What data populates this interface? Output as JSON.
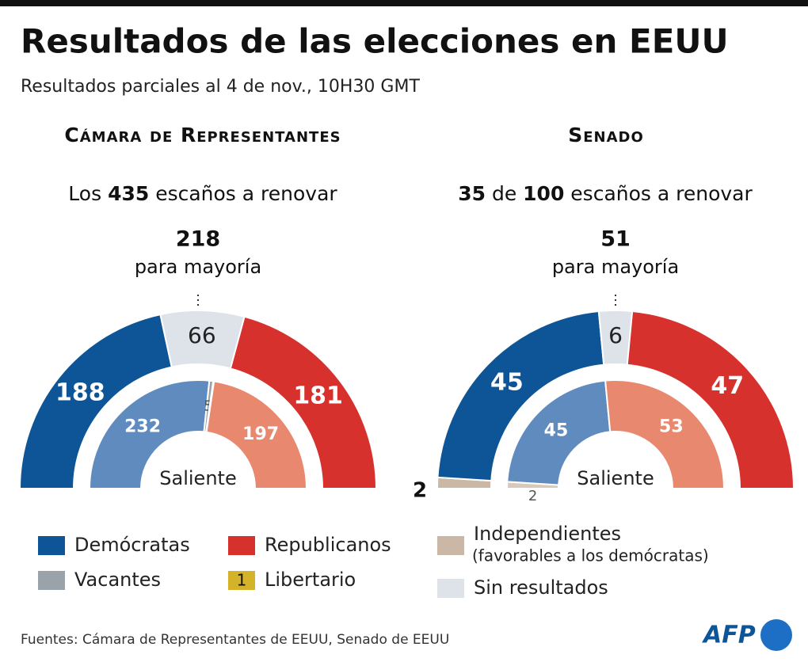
{
  "title": "Resultados de las elecciones en EEUU",
  "subtitle": "Resultados parciales al 4 de nov., 10H30 GMT",
  "legend": [
    {
      "name": "Demócratas",
      "color": "#0d5596"
    },
    {
      "name": "Republicanos",
      "color": "#d6312d"
    },
    {
      "name": "Independientes",
      "note": "(favorables a los demócratas)",
      "color": "#cbb7a5"
    },
    {
      "name": "Vacantes",
      "color": "#9aa3aa"
    },
    {
      "name": "Libertario",
      "color": "#d4b32b",
      "badge": 1
    },
    {
      "name": "Sin resultados",
      "color": "#dde3e8"
    }
  ],
  "inner_colors": {
    "0": "#5f8bbf",
    "1": "#e8896f",
    "2": "#d9c9bb",
    "3": "#9aa3aa",
    "4": "#d4b32b"
  },
  "chart_data": [
    {
      "type": "half-donut",
      "title": "Cámara de Representantes",
      "seats_text": [
        {
          "text": "Los "
        },
        {
          "value": 435
        },
        {
          "text": " escaños a renovar"
        }
      ],
      "majority": 218,
      "majority_label": "para mayoría",
      "outer": {
        "parties": [
          0,
          5,
          1
        ],
        "values": [
          188,
          66,
          181
        ]
      },
      "inner": {
        "name": "Saliente",
        "parties": [
          0,
          3,
          4,
          1
        ],
        "values": [
          232,
          5,
          1,
          197
        ]
      }
    },
    {
      "type": "half-donut",
      "title": "Senado",
      "seats_text": [
        {
          "value": 35
        },
        {
          "text": " de "
        },
        {
          "value": 100
        },
        {
          "text": " escaños a renovar"
        }
      ],
      "majority": 51,
      "majority_label": "para mayoría",
      "outer": {
        "parties": [
          2,
          0,
          5,
          1
        ],
        "values": [
          2,
          45,
          6,
          47
        ]
      },
      "inner": {
        "name": "Saliente",
        "parties": [
          2,
          0,
          1
        ],
        "values": [
          2,
          45,
          53
        ]
      }
    }
  ],
  "source": "Fuentes: Cámara de Representantes de EEUU, Senado de EEUU",
  "logo": "AFP"
}
